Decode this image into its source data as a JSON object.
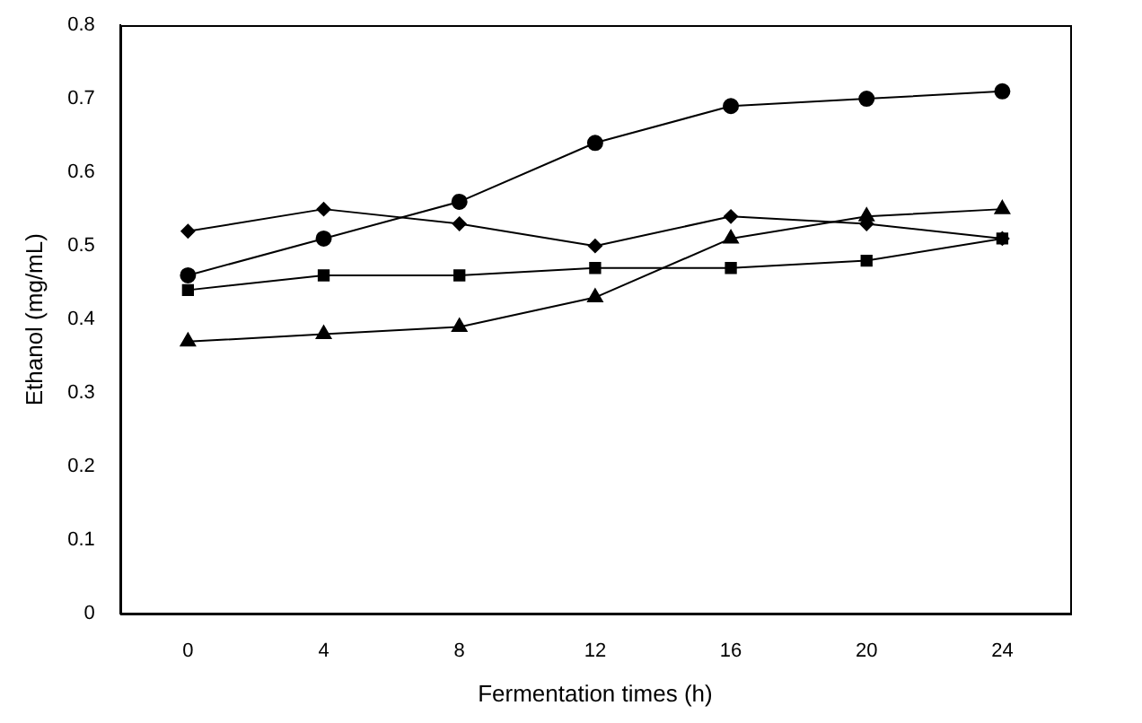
{
  "chart_data": {
    "type": "line",
    "xlabel": "Fermentation times (h)",
    "ylabel": "Ethanol (mg/mL)",
    "categories": [
      "0",
      "4",
      "8",
      "12",
      "16",
      "20",
      "24"
    ],
    "ylim": [
      0,
      0.8
    ],
    "yticks": [
      0,
      0.1,
      0.2,
      0.3,
      0.4,
      0.5,
      0.6,
      0.7,
      0.8
    ],
    "line_style": "solid",
    "series": [
      {
        "color": "#000000",
        "marker": "diamond",
        "values": [
          0.52,
          0.55,
          0.53,
          0.5,
          0.54,
          0.53,
          0.51
        ]
      },
      {
        "color": "#000000",
        "marker": "circle",
        "values": [
          0.46,
          0.51,
          0.56,
          0.64,
          0.69,
          0.7,
          0.71
        ]
      },
      {
        "color": "#000000",
        "marker": "square",
        "values": [
          0.44,
          0.46,
          0.46,
          0.47,
          0.47,
          0.48,
          0.51
        ]
      },
      {
        "color": "#000000",
        "marker": "triangle",
        "values": [
          0.37,
          0.38,
          0.39,
          0.43,
          0.51,
          0.54,
          0.55
        ]
      }
    ]
  }
}
